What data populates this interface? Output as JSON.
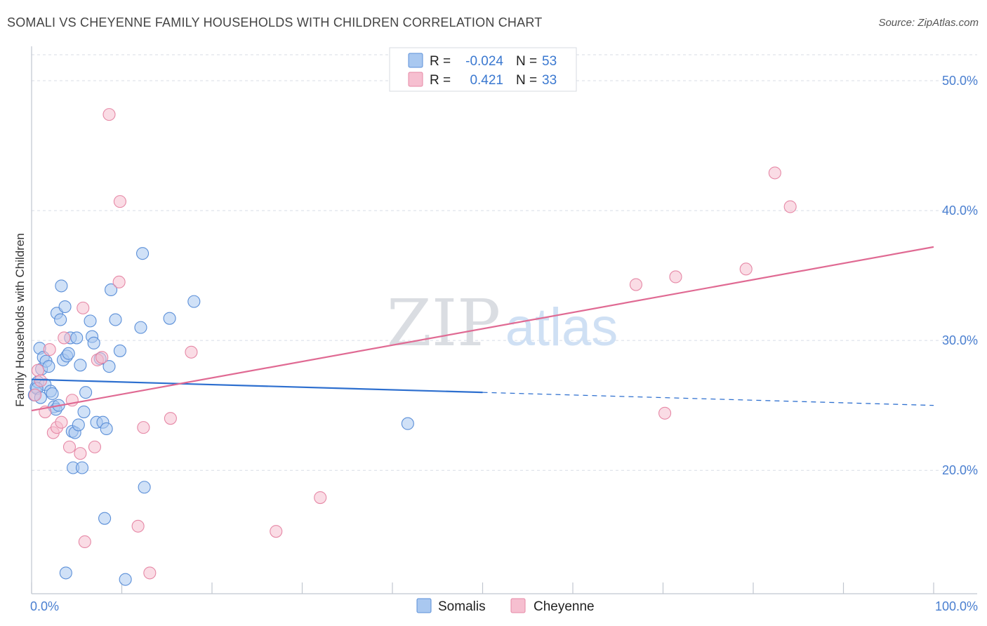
{
  "header": {
    "title": "SOMALI VS CHEYENNE FAMILY HOUSEHOLDS WITH CHILDREN CORRELATION CHART",
    "source": "Source: ZipAtlas.com"
  },
  "watermark": {
    "zip": "ZIP",
    "atlas": "atlas"
  },
  "legend_top": {
    "r_label": "R =",
    "n_label": "N =",
    "rows": [
      {
        "r": "-0.024",
        "n": "53"
      },
      {
        "r": "0.421",
        "n": "33"
      }
    ]
  },
  "colors": {
    "somali_fill": "#a9c8f0",
    "somali_stroke": "#5b8fd8",
    "somali_line": "#2d6fcf",
    "cheyenne_fill": "#f6bfd0",
    "cheyenne_stroke": "#e688a6",
    "cheyenne_line": "#e06a93",
    "grid": "#d8dde6",
    "axis": "#c0c6d0"
  },
  "chart_data": {
    "type": "scatter",
    "title": "SOMALI VS CHEYENNE FAMILY HOUSEHOLDS WITH CHILDREN CORRELATION CHART",
    "xlabel": "",
    "ylabel": "Family Households with Children",
    "xlim": [
      0,
      100
    ],
    "ylim": [
      10.5,
      52
    ],
    "x_tick_labels": [
      "0.0%",
      "100.0%"
    ],
    "y_ticks": [
      20,
      30,
      40,
      50
    ],
    "y_tick_labels": [
      "20.0%",
      "30.0%",
      "40.0%",
      "50.0%"
    ],
    "legend": [
      "Somalis",
      "Cheyenne"
    ],
    "series": [
      {
        "name": "Somalis",
        "r": -0.024,
        "n": 53,
        "trend": {
          "x0": 0,
          "y0": 27.0,
          "x1": 50,
          "y1": 26.0,
          "dash_x1": 100,
          "dash_y1": 25.0
        },
        "points": [
          [
            0.3,
            25.8
          ],
          [
            0.5,
            26.4
          ],
          [
            0.7,
            26.8
          ],
          [
            0.9,
            29.4
          ],
          [
            1.1,
            27.8
          ],
          [
            1.3,
            28.7
          ],
          [
            1.5,
            26.6
          ],
          [
            1.6,
            28.4
          ],
          [
            1.9,
            28.0
          ],
          [
            2.1,
            26.1
          ],
          [
            2.3,
            25.9
          ],
          [
            2.5,
            24.9
          ],
          [
            2.7,
            24.7
          ],
          [
            2.8,
            32.1
          ],
          [
            3.0,
            25.0
          ],
          [
            3.2,
            31.6
          ],
          [
            3.3,
            34.2
          ],
          [
            3.5,
            28.5
          ],
          [
            3.7,
            32.6
          ],
          [
            3.9,
            28.8
          ],
          [
            4.1,
            29.0
          ],
          [
            4.3,
            30.2
          ],
          [
            4.5,
            23.0
          ],
          [
            4.6,
            20.2
          ],
          [
            4.8,
            22.9
          ],
          [
            5.0,
            30.2
          ],
          [
            5.2,
            23.5
          ],
          [
            5.4,
            28.1
          ],
          [
            5.6,
            20.2
          ],
          [
            5.8,
            24.5
          ],
          [
            6.0,
            26.0
          ],
          [
            6.5,
            31.5
          ],
          [
            6.7,
            30.3
          ],
          [
            6.9,
            29.8
          ],
          [
            7.2,
            23.7
          ],
          [
            7.6,
            28.6
          ],
          [
            7.9,
            23.7
          ],
          [
            8.1,
            16.3
          ],
          [
            8.3,
            23.2
          ],
          [
            8.6,
            28.0
          ],
          [
            8.8,
            33.9
          ],
          [
            9.3,
            31.6
          ],
          [
            9.8,
            29.2
          ],
          [
            10.4,
            11.6
          ],
          [
            12.1,
            31.0
          ],
          [
            12.3,
            36.7
          ],
          [
            12.5,
            18.7
          ],
          [
            15.3,
            31.7
          ],
          [
            18.0,
            33.0
          ],
          [
            3.8,
            12.1
          ],
          [
            41.7,
            23.6
          ],
          [
            0.6,
            26.3
          ],
          [
            1.0,
            25.6
          ]
        ]
      },
      {
        "name": "Cheyenne",
        "r": 0.421,
        "n": 33,
        "trend": {
          "x0": 0,
          "y0": 24.6,
          "x1": 100,
          "y1": 37.2
        },
        "points": [
          [
            0.4,
            25.8
          ],
          [
            0.7,
            27.7
          ],
          [
            1.0,
            26.9
          ],
          [
            1.5,
            24.5
          ],
          [
            2.0,
            29.3
          ],
          [
            2.4,
            22.9
          ],
          [
            2.8,
            23.3
          ],
          [
            3.3,
            23.7
          ],
          [
            3.6,
            30.2
          ],
          [
            4.2,
            21.8
          ],
          [
            4.5,
            25.4
          ],
          [
            5.4,
            21.3
          ],
          [
            5.7,
            32.5
          ],
          [
            5.9,
            14.5
          ],
          [
            7.0,
            21.8
          ],
          [
            7.3,
            28.5
          ],
          [
            7.8,
            28.7
          ],
          [
            8.6,
            47.4
          ],
          [
            9.7,
            34.5
          ],
          [
            9.8,
            40.7
          ],
          [
            11.8,
            15.7
          ],
          [
            12.4,
            23.3
          ],
          [
            13.1,
            12.1
          ],
          [
            15.4,
            24.0
          ],
          [
            17.7,
            29.1
          ],
          [
            27.1,
            15.3
          ],
          [
            32.0,
            17.9
          ],
          [
            67.0,
            34.3
          ],
          [
            70.2,
            24.4
          ],
          [
            71.4,
            34.9
          ],
          [
            79.2,
            35.5
          ],
          [
            82.4,
            42.9
          ],
          [
            84.1,
            40.3
          ]
        ]
      }
    ]
  }
}
